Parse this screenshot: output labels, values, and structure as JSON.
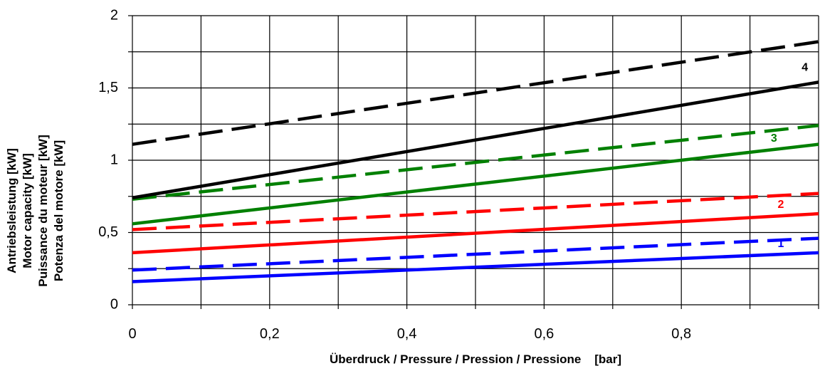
{
  "chart_data": {
    "type": "line",
    "xlabel": "Überdruck / Pressure / Pression / Pressione    [bar]",
    "ylabel_lines": [
      "Antriebsleistung [kW]",
      "Motor capacity [kW]",
      "Puissance du moteur [kW]",
      "Potenza del motore [kW]"
    ],
    "xlim": [
      0,
      1.0
    ],
    "ylim": [
      0,
      2
    ],
    "x_ticks": [
      0,
      0.2,
      0.4,
      0.6,
      0.8
    ],
    "x_tick_labels": [
      "0",
      "0,2",
      "0,4",
      "0,6",
      "0,8"
    ],
    "y_ticks": [
      0,
      0.5,
      1,
      1.5,
      2
    ],
    "y_tick_labels": [
      "0",
      "0,5",
      "1",
      "1,5",
      "2"
    ],
    "x_grid": [
      0,
      0.1,
      0.2,
      0.3,
      0.4,
      0.5,
      0.6,
      0.7,
      0.8,
      0.9,
      1.0
    ],
    "y_grid": [
      0,
      0.25,
      0.5,
      0.75,
      1.0,
      1.25,
      1.5,
      1.75,
      2.0
    ],
    "grid": true,
    "series": [
      {
        "label": "1",
        "color": "#0000ff",
        "style": "solid",
        "points": [
          [
            0,
            0.16
          ],
          [
            1.0,
            0.36
          ]
        ]
      },
      {
        "label": "1",
        "color": "#0000ff",
        "style": "dashed",
        "points": [
          [
            0,
            0.24
          ],
          [
            1.0,
            0.46
          ]
        ]
      },
      {
        "label": "2",
        "color": "#ff0000",
        "style": "solid",
        "points": [
          [
            0,
            0.36
          ],
          [
            1.0,
            0.63
          ]
        ]
      },
      {
        "label": "2",
        "color": "#ff0000",
        "style": "dashed",
        "points": [
          [
            0,
            0.52
          ],
          [
            1.0,
            0.77
          ]
        ]
      },
      {
        "label": "3",
        "color": "#008000",
        "style": "solid",
        "points": [
          [
            0,
            0.56
          ],
          [
            1.0,
            1.11
          ]
        ]
      },
      {
        "label": "3",
        "color": "#008000",
        "style": "dashed",
        "points": [
          [
            0,
            0.73
          ],
          [
            1.0,
            1.24
          ]
        ]
      },
      {
        "label": "4",
        "color": "#000000",
        "style": "solid",
        "points": [
          [
            0,
            0.74
          ],
          [
            1.0,
            1.54
          ]
        ]
      },
      {
        "label": "4",
        "color": "#000000",
        "style": "dashed",
        "points": [
          [
            0,
            1.11
          ],
          [
            1.0,
            1.82
          ]
        ]
      }
    ],
    "curve_labels": [
      {
        "text": "1",
        "color": "#0000ff",
        "x": 0.945,
        "y": 0.42
      },
      {
        "text": "2",
        "color": "#ff0000",
        "x": 0.945,
        "y": 0.69
      },
      {
        "text": "3",
        "color": "#008000",
        "x": 0.935,
        "y": 1.15
      },
      {
        "text": "4",
        "color": "#000000",
        "x": 0.98,
        "y": 1.64
      }
    ]
  }
}
